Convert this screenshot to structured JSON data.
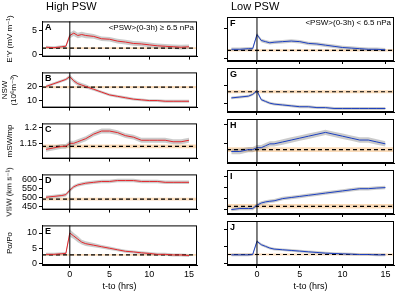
{
  "chart_data": [
    {
      "type": "line",
      "panel_label": "A",
      "title": "High PSW",
      "annotation": "<PSW>(0-3h) ≥ 6.5 nPa",
      "ylabel": "E'Y (mV m⁻¹)",
      "xlim": [
        -3.5,
        16
      ],
      "xticks": [
        0,
        5,
        10,
        15
      ],
      "ylim": [
        -0.5,
        7
      ],
      "yticks": [
        0,
        5
      ],
      "grid": false,
      "tick_labels": "y",
      "vertical_line_x": 0,
      "x": [
        -3,
        -2,
        -1,
        -0.5,
        0,
        0.5,
        1,
        1.5,
        2,
        3,
        4,
        5,
        6,
        7,
        8,
        9,
        10,
        11,
        12,
        13,
        14,
        15
      ],
      "series": [
        {
          "color": "#e3262b",
          "values": [
            1.5,
            1.4,
            1.6,
            1.7,
            4.0,
            4.5,
            4.0,
            4.2,
            4.0,
            3.8,
            3.3,
            3.2,
            2.8,
            2.6,
            2.3,
            2.2,
            2.0,
            1.8,
            1.7,
            1.6,
            1.5,
            1.6
          ],
          "error": [
            0.3,
            0.3,
            0.3,
            0.3,
            0.6,
            0.6,
            0.6,
            0.6,
            0.6,
            0.5,
            0.5,
            0.5,
            0.5,
            0.5,
            0.5,
            0.5,
            0.5,
            0.5,
            0.5,
            0.5,
            0.5,
            0.5
          ]
        },
        {
          "color": "#000000",
          "line_style": "dashed",
          "x": [
            -3.5,
            16
          ],
          "values": [
            1.3,
            1.3
          ],
          "error": [
            0.2,
            0.2
          ]
        }
      ]
    },
    {
      "type": "line",
      "panel_label": "B",
      "ylabel": "NSW (10⁶m⁻³)",
      "xlim": [
        -3.5,
        16
      ],
      "xticks": [
        0,
        5,
        10,
        15
      ],
      "ylim": [
        5,
        30
      ],
      "yticks": [
        10,
        20
      ],
      "grid": false,
      "tick_labels": "y",
      "vertical_line_x": 0,
      "x": [
        -3,
        -2,
        -1,
        -0.5,
        0,
        0.5,
        1,
        1.5,
        2,
        3,
        4,
        5,
        6,
        7,
        8,
        9,
        10,
        11,
        12,
        13,
        14,
        15
      ],
      "series": [
        {
          "color": "#e3262b",
          "values": [
            20,
            22,
            24,
            25,
            27,
            24,
            22,
            21,
            20,
            18,
            16,
            14,
            13,
            12,
            11,
            10.5,
            10,
            10,
            9.5,
            9.5,
            9.5,
            9.5
          ],
          "error": [
            1,
            1,
            1,
            1,
            1.5,
            1.5,
            1.5,
            1.5,
            1.5,
            1,
            1,
            1,
            1,
            1,
            1,
            1,
            1,
            1,
            1,
            1,
            1,
            1
          ]
        },
        {
          "color": "#000000",
          "line_style": "dashed",
          "x": [
            -3.5,
            16
          ],
          "values": [
            19.5,
            19.5
          ],
          "error": [
            0.8,
            0.8
          ]
        }
      ]
    },
    {
      "type": "line",
      "panel_label": "C",
      "ylabel": "mSW/mp",
      "xlim": [
        -3.5,
        16
      ],
      "xticks": [
        0,
        5,
        10,
        15
      ],
      "ylim": [
        1.1,
        1.215
      ],
      "yticks": [
        1.15,
        1.2
      ],
      "grid": false,
      "tick_labels": "y",
      "vertical_line_x": 0,
      "x": [
        -3,
        -2,
        -1,
        -0.5,
        0,
        0.5,
        1,
        1.5,
        2,
        3,
        4,
        5,
        6,
        7,
        8,
        9,
        10,
        11,
        12,
        13,
        14,
        15
      ],
      "series": [
        {
          "color": "#e3262b",
          "values": [
            1.13,
            1.135,
            1.14,
            1.14,
            1.15,
            1.15,
            1.155,
            1.16,
            1.165,
            1.18,
            1.19,
            1.19,
            1.185,
            1.175,
            1.17,
            1.16,
            1.16,
            1.16,
            1.16,
            1.155,
            1.155,
            1.16
          ],
          "error": [
            0.008,
            0.008,
            0.008,
            0.008,
            0.008,
            0.008,
            0.008,
            0.008,
            0.008,
            0.008,
            0.008,
            0.008,
            0.008,
            0.008,
            0.008,
            0.008,
            0.008,
            0.008,
            0.008,
            0.008,
            0.008,
            0.008
          ]
        },
        {
          "color": "#000000",
          "line_style": "dashed",
          "x": [
            -3.5,
            16
          ],
          "values": [
            1.14,
            1.14
          ],
          "error": [
            0.006,
            0.006
          ]
        }
      ]
    },
    {
      "type": "line",
      "panel_label": "D",
      "ylabel": "VSW (km s⁻¹)",
      "xlim": [
        -3.5,
        16
      ],
      "xticks": [
        0,
        5,
        10,
        15
      ],
      "ylim": [
        430,
        630
      ],
      "yticks": [
        450,
        500,
        550,
        600
      ],
      "grid": false,
      "tick_labels": "y",
      "vertical_line_x": 0,
      "x": [
        -3,
        -2,
        -1,
        -0.5,
        0,
        0.5,
        1,
        1.5,
        2,
        3,
        4,
        5,
        6,
        7,
        8,
        9,
        10,
        11,
        12,
        13,
        14,
        15
      ],
      "series": [
        {
          "color": "#e3262b",
          "values": [
            500,
            505,
            510,
            515,
            540,
            560,
            570,
            575,
            580,
            585,
            590,
            590,
            595,
            595,
            595,
            590,
            590,
            590,
            585,
            585,
            585,
            585
          ],
          "error": [
            10,
            10,
            10,
            10,
            10,
            10,
            10,
            10,
            10,
            10,
            10,
            10,
            10,
            10,
            10,
            10,
            10,
            10,
            10,
            10,
            10,
            10
          ]
        },
        {
          "color": "#000000",
          "line_style": "dashed",
          "x": [
            -3.5,
            16
          ],
          "values": [
            490,
            490
          ],
          "error": [
            8,
            8
          ]
        }
      ]
    },
    {
      "type": "line",
      "panel_label": "E",
      "ylabel": "Pα/Po",
      "xlabel": "t-to (hrs)",
      "xlim": [
        -3.5,
        16
      ],
      "xticks": [
        0,
        5,
        10,
        15
      ],
      "ylim": [
        -0.5,
        12.5
      ],
      "yticks": [
        0,
        5,
        10
      ],
      "grid": false,
      "tick_labels": true,
      "vertical_line_x": 0,
      "x": [
        -3,
        -2,
        -1,
        -0.5,
        0,
        0.5,
        1,
        1.5,
        2,
        3,
        4,
        5,
        6,
        7,
        8,
        9,
        10,
        11,
        12,
        13,
        14,
        15
      ],
      "series": [
        {
          "color": "#e3262b",
          "values": [
            3,
            3,
            3.2,
            3.3,
            10,
            9,
            8,
            7,
            6.5,
            6,
            5.5,
            5,
            4.5,
            4,
            3.8,
            3.5,
            3.3,
            3,
            3,
            2.8,
            2.8,
            2.6
          ],
          "error": [
            0.5,
            0.5,
            0.5,
            0.5,
            1.2,
            1,
            1,
            0.8,
            0.8,
            0.7,
            0.6,
            0.6,
            0.5,
            0.5,
            0.5,
            0.5,
            0.5,
            0.5,
            0.5,
            0.5,
            0.5,
            0.5
          ]
        },
        {
          "color": "#000000",
          "line_style": "dashed",
          "x": [
            -3.5,
            16
          ],
          "values": [
            2.8,
            2.8
          ],
          "error": [
            0.3,
            0.3
          ]
        }
      ]
    },
    {
      "type": "line",
      "panel_label": "F",
      "title": "Low PSW",
      "annotation": "<PSW>(0-3h) < 6.5 nPa",
      "xlim": [
        -3.5,
        16
      ],
      "xticks": [
        0,
        5,
        10,
        15
      ],
      "ylim": [
        -0.5,
        7
      ],
      "yticks": [
        0,
        5
      ],
      "grid": false,
      "tick_labels": false,
      "vertical_line_x": 0,
      "x": [
        -3,
        -2,
        -1,
        -0.5,
        0,
        0.5,
        1,
        1.5,
        2,
        3,
        4,
        5,
        6,
        7,
        8,
        9,
        10,
        11,
        12,
        13,
        14,
        15
      ],
      "series": [
        {
          "color": "#1c3fbf",
          "values": [
            1.5,
            1.5,
            1.6,
            1.6,
            4,
            3,
            2.8,
            2.6,
            2.7,
            2.8,
            2.9,
            2.8,
            2.5,
            2.4,
            2.2,
            2,
            1.8,
            1.7,
            1.6,
            1.5,
            1.5,
            1.4
          ],
          "error": [
            0.3,
            0.3,
            0.3,
            0.3,
            0.3,
            0.3,
            0.3,
            0.3,
            0.3,
            0.3,
            0.3,
            0.3,
            0.3,
            0.3,
            0.3,
            0.3,
            0.3,
            0.3,
            0.3,
            0.3,
            0.3,
            0.3
          ]
        },
        {
          "color": "#000000",
          "line_style": "dashed",
          "x": [
            -3.5,
            16
          ],
          "values": [
            1.3,
            1.3
          ],
          "error": [
            0.2,
            0.2
          ]
        }
      ]
    },
    {
      "type": "line",
      "panel_label": "G",
      "xlim": [
        -3.5,
        16
      ],
      "xticks": [
        0,
        5,
        10,
        15
      ],
      "ylim": [
        5,
        30
      ],
      "yticks": [
        10,
        20
      ],
      "grid": false,
      "tick_labels": false,
      "vertical_line_x": 0,
      "x": [
        -3,
        -2,
        -1,
        -0.5,
        0,
        0.5,
        1,
        1.5,
        2,
        3,
        4,
        5,
        6,
        7,
        8,
        9,
        10,
        11,
        12,
        13,
        14,
        15
      ],
      "series": [
        {
          "color": "#1c3fbf",
          "values": [
            13,
            13.5,
            14,
            15,
            17,
            12,
            11,
            10,
            9.5,
            9,
            8.5,
            8,
            8,
            7.5,
            7.5,
            7,
            7,
            7,
            7,
            7,
            7,
            7
          ],
          "error": [
            0.8,
            0.8,
            0.8,
            0.8,
            0.8,
            0.8,
            0.8,
            0.8,
            0.8,
            0.8,
            0.8,
            0.8,
            0.8,
            0.8,
            0.8,
            0.8,
            0.8,
            0.8,
            0.8,
            0.8,
            0.8,
            0.8
          ]
        },
        {
          "color": "#000000",
          "line_style": "dashed",
          "x": [
            -3.5,
            16
          ],
          "values": [
            16.5,
            16.5
          ],
          "error": [
            0.8,
            0.8
          ]
        }
      ]
    },
    {
      "type": "line",
      "panel_label": "H",
      "xlim": [
        -3.5,
        16
      ],
      "xticks": [
        0,
        5,
        10,
        15
      ],
      "ylim": [
        1.1,
        1.215
      ],
      "yticks": [
        1.15,
        1.2
      ],
      "grid": false,
      "tick_labels": false,
      "vertical_line_x": 0,
      "x": [
        -3,
        -2,
        -1,
        -0.5,
        0,
        0.5,
        1,
        1.5,
        2,
        3,
        4,
        5,
        6,
        7,
        8,
        9,
        10,
        11,
        12,
        13,
        14,
        15
      ],
      "series": [
        {
          "color": "#1c3fbf",
          "values": [
            1.13,
            1.13,
            1.135,
            1.135,
            1.14,
            1.14,
            1.145,
            1.15,
            1.15,
            1.155,
            1.16,
            1.165,
            1.17,
            1.175,
            1.18,
            1.175,
            1.17,
            1.165,
            1.16,
            1.16,
            1.155,
            1.15
          ],
          "error": [
            0.007,
            0.007,
            0.007,
            0.007,
            0.007,
            0.007,
            0.007,
            0.007,
            0.007,
            0.007,
            0.007,
            0.007,
            0.007,
            0.007,
            0.007,
            0.007,
            0.007,
            0.007,
            0.007,
            0.007,
            0.007,
            0.007
          ]
        },
        {
          "color": "#000000",
          "line_style": "dashed",
          "x": [
            -3.5,
            16
          ],
          "values": [
            1.135,
            1.135
          ],
          "error": [
            0.006,
            0.006
          ]
        }
      ]
    },
    {
      "type": "line",
      "panel_label": "I",
      "xlim": [
        -3.5,
        16
      ],
      "xticks": [
        0,
        5,
        10,
        15
      ],
      "ylim": [
        430,
        630
      ],
      "yticks": [
        450,
        500,
        550,
        600
      ],
      "grid": false,
      "tick_labels": false,
      "vertical_line_x": 0,
      "x": [
        -3,
        -2,
        -1,
        -0.5,
        0,
        0.5,
        1,
        1.5,
        2,
        3,
        4,
        5,
        6,
        7,
        8,
        9,
        10,
        11,
        12,
        13,
        14,
        15
      ],
      "series": [
        {
          "color": "#1c3fbf",
          "values": [
            450,
            455,
            455,
            455,
            470,
            480,
            485,
            488,
            490,
            500,
            505,
            510,
            515,
            520,
            525,
            530,
            535,
            540,
            545,
            545,
            548,
            550
          ],
          "error": [
            8,
            8,
            8,
            8,
            8,
            8,
            8,
            8,
            8,
            8,
            8,
            8,
            8,
            8,
            8,
            8,
            8,
            8,
            8,
            8,
            8,
            8
          ]
        },
        {
          "color": "#000000",
          "line_style": "dashed",
          "x": [
            -3.5,
            16
          ],
          "values": [
            465,
            465
          ],
          "error": [
            10,
            10
          ]
        }
      ]
    },
    {
      "type": "line",
      "panel_label": "J",
      "xlabel": "t-to (hrs)",
      "xlim": [
        -3.5,
        16
      ],
      "xticks": [
        0,
        5,
        10,
        15
      ],
      "ylim": [
        -0.5,
        12.5
      ],
      "yticks": [
        0,
        5,
        10
      ],
      "grid": false,
      "tick_labels": "x",
      "vertical_line_x": 0,
      "x": [
        -3,
        -2,
        -1,
        -0.5,
        0,
        0.5,
        1,
        1.5,
        2,
        3,
        4,
        5,
        6,
        7,
        8,
        9,
        10,
        11,
        12,
        13,
        14,
        15
      ],
      "series": [
        {
          "color": "#1c3fbf",
          "values": [
            2.5,
            2.5,
            2.5,
            2.6,
            6.5,
            5.5,
            5,
            4.5,
            4.2,
            4,
            3.8,
            3.6,
            3.4,
            3.2,
            3,
            2.9,
            2.8,
            2.7,
            2.6,
            2.6,
            2.5,
            2.5
          ],
          "error": [
            0.4,
            0.4,
            0.4,
            0.4,
            0.4,
            0.4,
            0.4,
            0.4,
            0.4,
            0.4,
            0.4,
            0.4,
            0.4,
            0.4,
            0.4,
            0.4,
            0.4,
            0.4,
            0.4,
            0.4,
            0.4,
            0.4
          ]
        },
        {
          "color": "#000000",
          "line_style": "dashed",
          "x": [
            -3.5,
            16
          ],
          "values": [
            2.6,
            2.6
          ],
          "error": [
            0.3,
            0.3
          ]
        }
      ]
    }
  ]
}
